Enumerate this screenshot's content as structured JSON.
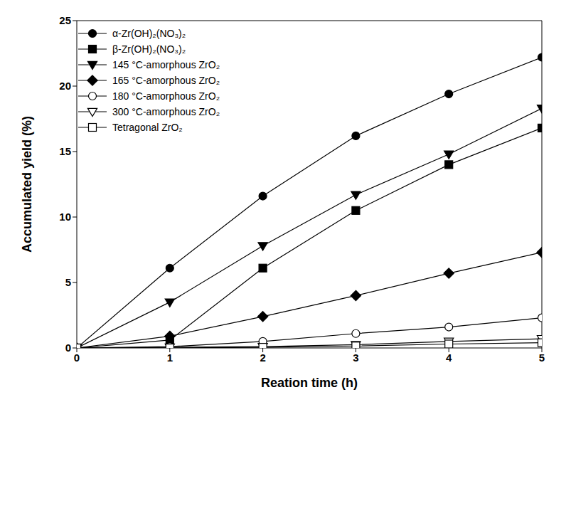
{
  "chart_data": {
    "type": "line",
    "x_label": "Reation time (h)",
    "y_label": "Accumulated yield (%)",
    "x": [
      0,
      1,
      2,
      3,
      4,
      5
    ],
    "xlim": [
      0,
      5
    ],
    "xticks": [
      0,
      1,
      2,
      3,
      4,
      5
    ],
    "ylim": [
      0,
      25
    ],
    "yticks": [
      0,
      5,
      10,
      15,
      20,
      25
    ],
    "grid": false,
    "legend": "upper left",
    "series": [
      {
        "name": "α-Zr(OH)₂(NO₃)₂",
        "color": "#000000",
        "marker": "circle",
        "values": [
          0,
          6.1,
          11.6,
          16.2,
          19.4,
          22.2
        ]
      },
      {
        "name": "β-Zr(OH)₂(NO₃)₂",
        "color": "#000000",
        "marker": "square",
        "values": [
          0,
          0.6,
          6.1,
          10.5,
          14.0,
          16.8
        ]
      },
      {
        "name": "145 °C-amorphous ZrO₂",
        "color": "#000000",
        "marker": "triangle_down",
        "values": [
          0,
          3.5,
          7.8,
          11.7,
          14.8,
          18.3
        ]
      },
      {
        "name": "165 °C-amorphous ZrO₂",
        "color": "#000000",
        "marker": "diamond",
        "values": [
          0,
          0.9,
          2.4,
          4.0,
          5.7,
          7.3
        ]
      },
      {
        "name": "180 °C-amorphous ZrO₂",
        "color": "#000000",
        "marker": "open_circle",
        "values": [
          0,
          0.1,
          0.5,
          1.1,
          1.6,
          2.3
        ]
      },
      {
        "name": "300 °C-amorphous ZrO₂",
        "color": "#000000",
        "marker": "open_triangle_down",
        "values": [
          0,
          0.05,
          0.1,
          0.25,
          0.5,
          0.7
        ]
      },
      {
        "name": "Tetragonal ZrO₂",
        "color": "#000000",
        "marker": "open_square",
        "values": [
          0,
          0,
          0.05,
          0.15,
          0.3,
          0.4
        ]
      }
    ]
  }
}
